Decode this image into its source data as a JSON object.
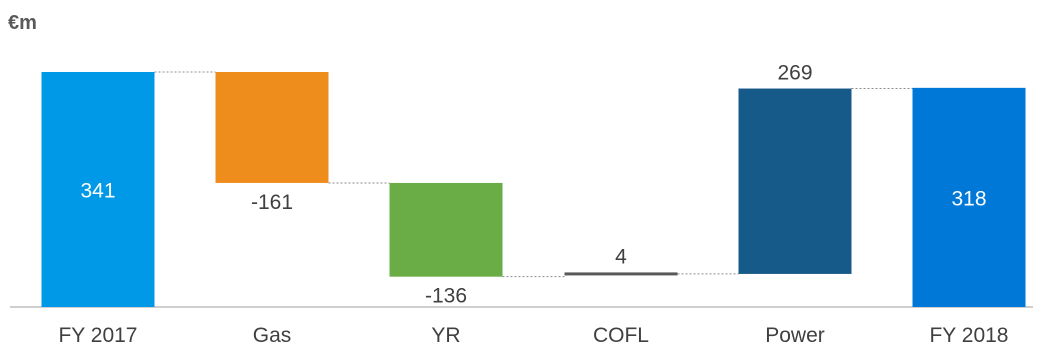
{
  "unit": "€m",
  "chart_data": {
    "type": "bar",
    "subtype": "waterfall",
    "title": "",
    "xlabel": "",
    "ylabel": "€m",
    "categories": [
      "FY 2017",
      "Gas",
      "YR",
      "COFL",
      "Power",
      "FY 2018"
    ],
    "values": [
      341,
      -161,
      -136,
      4,
      269,
      318
    ],
    "value_labels": [
      "341",
      "-161",
      "-136",
      "4",
      "269",
      "318"
    ],
    "kinds": [
      "total",
      "delta",
      "delta",
      "delta",
      "delta",
      "total"
    ],
    "colors": [
      "#0099e8",
      "#ee8c1c",
      "#6aac46",
      "#595959",
      "#165a89",
      "#0078d7"
    ],
    "ylim": [
      0,
      341
    ],
    "grid": false,
    "legend": "none",
    "connector_lines": true
  }
}
